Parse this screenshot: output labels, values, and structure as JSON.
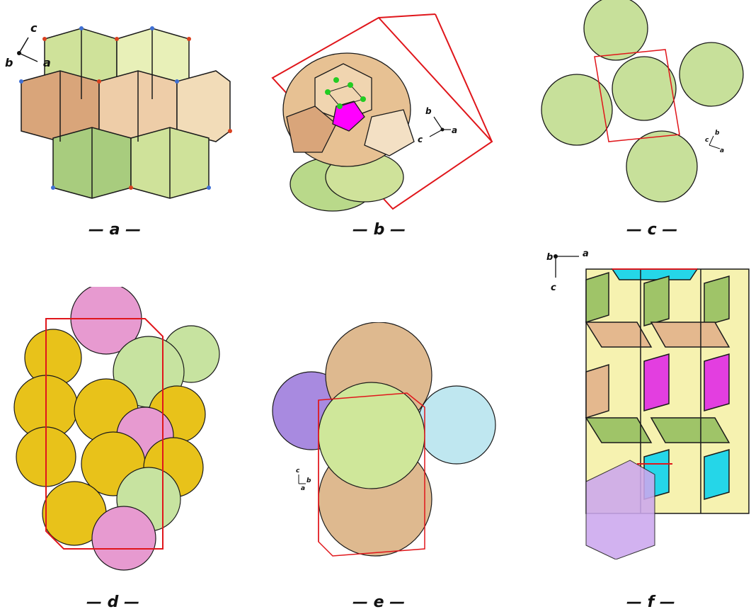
{
  "panels": [
    {
      "id": "a",
      "caption": "— a —",
      "axes": [
        "c",
        "b",
        "a"
      ],
      "colors": {
        "top": "#cfe29a",
        "side": "#e9c59a",
        "edge": "#1a1a1a",
        "vertex_red": "#d9401f",
        "vertex_blue": "#3f6fd4"
      }
    },
    {
      "id": "b",
      "caption": "— b —",
      "axes": [
        "b",
        "c",
        "a"
      ],
      "colors": {
        "cell": "#e7c193",
        "shell": "#b9d98a",
        "core": "#ff00ff",
        "atom": "#22cc22",
        "box": "#e0161b"
      }
    },
    {
      "id": "c",
      "caption": "— c —",
      "axes": [
        "b",
        "c",
        "a"
      ],
      "colors": {
        "poly": "#c7e09a",
        "box": "#e0161b"
      }
    },
    {
      "id": "d",
      "caption": "— d —",
      "axes": [],
      "colors": {
        "yellow": "#e8c21a",
        "pink": "#e79ad0",
        "green": "#c7e3a0",
        "box": "#e0161b"
      }
    },
    {
      "id": "e",
      "caption": "— e —",
      "axes": [
        "c",
        "b",
        "a"
      ],
      "colors": {
        "tan": "#deb98f",
        "purple": "#a88ae0",
        "cyan": "#bfe7f0",
        "green": "#cfe79a",
        "box": "#e0161b"
      }
    },
    {
      "id": "f",
      "caption": "— f —",
      "axes": [
        "b",
        "a",
        "c"
      ],
      "colors": {
        "yellow": "#f6f2b0",
        "green": "#9fc468",
        "tan": "#e4b88e",
        "magenta": "#e33ee0",
        "cyan": "#25d6e8",
        "purple": "#cca8ee"
      }
    }
  ]
}
